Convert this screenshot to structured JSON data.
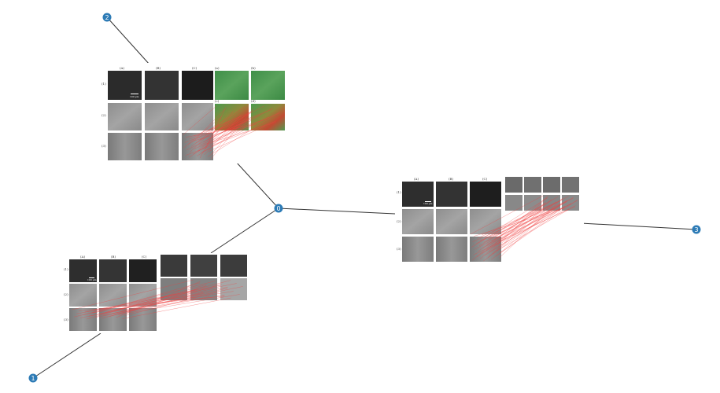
{
  "graph": {
    "node_color": "#2d7bb6",
    "edge_color": "#333333",
    "match_color": "#f04040",
    "nodes": [
      {
        "id": "0",
        "label": "0"
      },
      {
        "id": "1",
        "label": "1"
      },
      {
        "id": "2",
        "label": "2"
      },
      {
        "id": "3",
        "label": "3"
      }
    ],
    "edges": [
      [
        "0",
        "1"
      ],
      [
        "0",
        "2"
      ],
      [
        "0",
        "3"
      ]
    ]
  },
  "figure": {
    "column_labels": [
      "(A)",
      "(B)",
      "(C)"
    ],
    "row_labels": [
      "(1)",
      "(2)",
      "(3)"
    ],
    "scale_label": "100 µm",
    "overlay_labels": [
      "(a)",
      "(b)",
      "(c)",
      "(d)"
    ]
  }
}
